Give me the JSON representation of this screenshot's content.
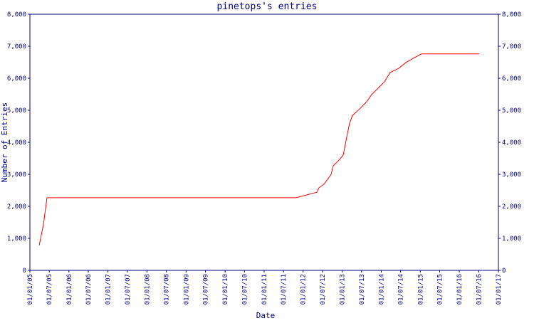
{
  "chart_data": {
    "type": "line",
    "title": "pinetops's entries",
    "x_label": "Date",
    "y_label": "Number of Entries",
    "x": [
      "2005-03-29",
      "2005-05-08",
      "2005-06-10",
      "2011-10-27",
      "2012-05-08",
      "2012-05-28",
      "2012-07-14",
      "2012-08-16",
      "2012-09-19",
      "2012-10-09",
      "2012-12-01",
      "2013-01-10",
      "2013-02-12",
      "2013-03-11",
      "2013-04-07",
      "2013-06-12",
      "2013-08-18",
      "2013-10-03",
      "2013-11-26",
      "2014-01-31",
      "2014-03-25",
      "2014-06-13",
      "2014-08-19",
      "2014-10-25",
      "2015-01-13",
      "2016-07-05"
    ],
    "series": [
      {
        "name": "entries",
        "color": "#ff0000",
        "values": [
          780,
          1440,
          2270,
          2270,
          2440,
          2580,
          2690,
          2840,
          3000,
          3270,
          3440,
          3600,
          4160,
          4600,
          4840,
          5040,
          5270,
          5490,
          5670,
          5890,
          6180,
          6310,
          6490,
          6620,
          6760,
          6760
        ]
      }
    ],
    "xlim": [
      "2005-01-01",
      "2017-01-01"
    ],
    "xticks": [
      {
        "value": "2005-01-01",
        "label": "01/01/05"
      },
      {
        "value": "2005-07-01",
        "label": "01/07/05"
      },
      {
        "value": "2006-01-01",
        "label": "01/01/06"
      },
      {
        "value": "2006-07-01",
        "label": "01/07/06"
      },
      {
        "value": "2007-01-01",
        "label": "01/01/07"
      },
      {
        "value": "2007-07-01",
        "label": "01/07/07"
      },
      {
        "value": "2008-01-01",
        "label": "01/01/08"
      },
      {
        "value": "2008-07-01",
        "label": "01/07/08"
      },
      {
        "value": "2009-01-01",
        "label": "01/01/09"
      },
      {
        "value": "2009-07-01",
        "label": "01/07/09"
      },
      {
        "value": "2010-01-01",
        "label": "01/01/10"
      },
      {
        "value": "2010-07-01",
        "label": "01/07/10"
      },
      {
        "value": "2011-01-01",
        "label": "01/01/11"
      },
      {
        "value": "2011-07-01",
        "label": "01/07/11"
      },
      {
        "value": "2012-01-01",
        "label": "01/01/12"
      },
      {
        "value": "2012-07-01",
        "label": "01/07/12"
      },
      {
        "value": "2013-01-01",
        "label": "01/01/13"
      },
      {
        "value": "2013-07-01",
        "label": "01/07/13"
      },
      {
        "value": "2014-01-01",
        "label": "01/01/14"
      },
      {
        "value": "2014-07-01",
        "label": "01/07/14"
      },
      {
        "value": "2015-01-01",
        "label": "01/01/15"
      },
      {
        "value": "2015-07-01",
        "label": "01/07/15"
      },
      {
        "value": "2016-01-01",
        "label": "01/01/16"
      },
      {
        "value": "2016-07-01",
        "label": "01/07/16"
      },
      {
        "value": "2017-01-01",
        "label": "01/01/17"
      }
    ],
    "ylim": [
      0,
      8000
    ],
    "yticks": [
      0,
      {
        "value": 1000,
        "label": "1,000"
      },
      {
        "value": 2000,
        "label": "2,000"
      },
      {
        "value": 3000,
        "label": "3,000"
      },
      {
        "value": 4000,
        "label": "4,000"
      },
      {
        "value": 5000,
        "label": "5,000"
      },
      {
        "value": 6000,
        "label": "6,000"
      },
      {
        "value": 7000,
        "label": "7,000"
      },
      {
        "value": 8000,
        "label": "8,000"
      }
    ],
    "y_right_axis": true
  }
}
